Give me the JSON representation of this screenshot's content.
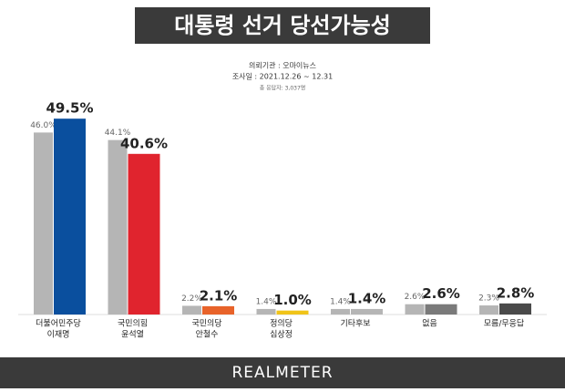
{
  "chart_data": {
    "type": "bar",
    "title": "대통령 선거 당선가능성",
    "subtitle": [
      "의뢰기관 : 오마이뉴스",
      "조사일 : 2021.12.26 ~ 12.31",
      "총 응답자: 3,037명"
    ],
    "categories": [
      [
        "더불어민주당",
        "이재명"
      ],
      [
        "국민의힘",
        "윤석열"
      ],
      [
        "국민의당",
        "안철수"
      ],
      [
        "정의당",
        "심상정"
      ],
      [
        "기타후보"
      ],
      [
        "없음"
      ],
      [
        "모름/무응답"
      ]
    ],
    "series": [
      {
        "color": "#b5b5b5",
        "values": [
          46.0,
          44.1,
          2.2,
          1.4,
          1.4,
          2.6,
          2.3
        ],
        "value_labels": [
          "46.0%",
          "44.1%",
          "2.2%",
          "1.4%",
          "1.4%",
          "2.6%",
          "2.3%"
        ]
      },
      {
        "colors": [
          "#0a4f9e",
          "#e0242e",
          "#e8632a",
          "#f0c419",
          "#b5b5b5",
          "#7a7a7a",
          "#4a4a4a"
        ],
        "values": [
          49.5,
          40.6,
          2.1,
          1.0,
          1.4,
          2.6,
          2.8
        ],
        "value_labels": [
          "49.5%",
          "40.6%",
          "2.1%",
          "1.0%",
          "1.4%",
          "2.6%",
          "2.8%"
        ]
      }
    ],
    "footer": "REALMETER"
  }
}
